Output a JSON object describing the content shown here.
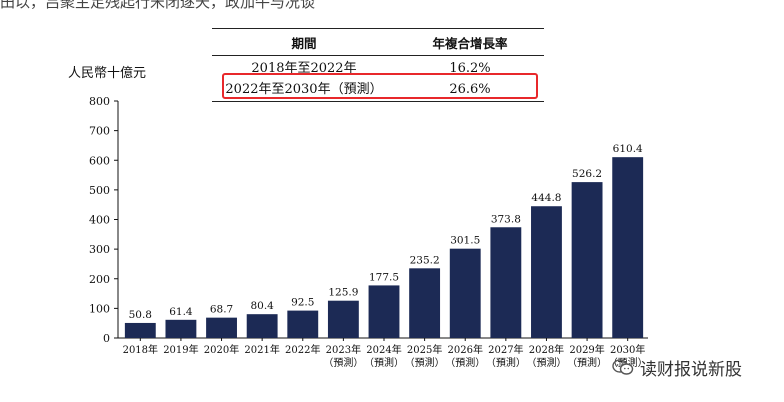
{
  "top_text": "田以，吕聚主足残起行宋闭逐天，政加牛与况谈",
  "table": {
    "headers": [
      "期間",
      "年複合增長率"
    ],
    "rows": [
      {
        "period": "2018年至2022年",
        "cagr": "16.2%"
      },
      {
        "period": "2022年至2030年（預測）",
        "cagr": "26.6%"
      }
    ]
  },
  "colors": {
    "bar": "#1c2a55",
    "highlight": "#e8282b",
    "axis": "#111111"
  },
  "chart_data": {
    "type": "bar",
    "ylabel": "人民幣十億元",
    "ylim": [
      0,
      800
    ],
    "yticks": [
      0,
      100,
      200,
      300,
      400,
      500,
      600,
      700,
      800
    ],
    "grid": false,
    "categories": [
      {
        "year": "2018年",
        "note": ""
      },
      {
        "year": "2019年",
        "note": ""
      },
      {
        "year": "2020年",
        "note": ""
      },
      {
        "year": "2021年",
        "note": ""
      },
      {
        "year": "2022年",
        "note": ""
      },
      {
        "year": "2023年",
        "note": "（預測）"
      },
      {
        "year": "2024年",
        "note": "（預測）"
      },
      {
        "year": "2025年",
        "note": "（預測）"
      },
      {
        "year": "2026年",
        "note": "（預測）"
      },
      {
        "year": "2027年",
        "note": "（預測）"
      },
      {
        "year": "2028年",
        "note": "（預測）"
      },
      {
        "year": "2029年",
        "note": "（預測）"
      },
      {
        "year": "2030年",
        "note": "（預測）"
      }
    ],
    "values": [
      50.8,
      61.4,
      68.7,
      80.4,
      92.5,
      125.9,
      177.5,
      235.2,
      301.5,
      373.8,
      444.8,
      526.2,
      610.4
    ],
    "value_labels": [
      "50.8",
      "61.4",
      "68.7",
      "80.4",
      "92.5",
      "125.9",
      "177.5",
      "235.2",
      "301.5",
      "373.8",
      "444.8",
      "526.2",
      "610.4"
    ]
  },
  "watermark": {
    "text": "读财报说新股",
    "icon": "wechat-icon"
  }
}
